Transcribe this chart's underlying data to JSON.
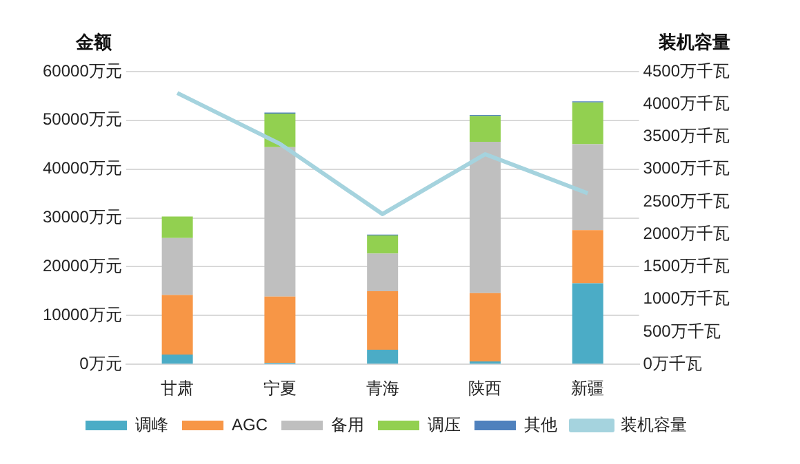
{
  "chart_data": {
    "type": "bar",
    "stacked": true,
    "ylabel": "金额",
    "y2label": "装机容量",
    "categories": [
      "甘肃",
      "宁夏",
      "青海",
      "陕西",
      "新疆"
    ],
    "series": [
      {
        "name": "调峰",
        "color": "#4bacc6",
        "values": [
          2000,
          300,
          3000,
          600,
          16600
        ]
      },
      {
        "name": "AGC",
        "color": "#f79646",
        "values": [
          12200,
          13600,
          12000,
          14000,
          10900
        ]
      },
      {
        "name": "备用",
        "color": "#bfbfbf",
        "values": [
          11700,
          30600,
          7700,
          31000,
          17600
        ]
      },
      {
        "name": "调压",
        "color": "#92d050",
        "values": [
          4400,
          6900,
          3700,
          5300,
          8600
        ]
      },
      {
        "name": "其他",
        "color": "#4f81bd",
        "values": [
          null,
          200,
          200,
          200,
          200
        ]
      },
      {
        "name": "装机容量",
        "type": "line",
        "axis": "y2",
        "color": "#a5d3de",
        "marker": "none",
        "values": [
          4170,
          3390,
          2310,
          3230,
          2630
        ]
      }
    ],
    "ylim": [
      0,
      60000
    ],
    "yticks": [
      {
        "value": 0,
        "label": "0万元"
      },
      {
        "value": 10000,
        "label": "10000万元"
      },
      {
        "value": 20000,
        "label": "20000万元"
      },
      {
        "value": 30000,
        "label": "30000万元"
      },
      {
        "value": 40000,
        "label": "40000万元"
      },
      {
        "value": 50000,
        "label": "50000万元"
      },
      {
        "value": 60000,
        "label": "60000万元"
      }
    ],
    "y2lim": [
      0,
      4500
    ],
    "y2ticks": [
      {
        "value": 0,
        "label": "0万千瓦"
      },
      {
        "value": 500,
        "label": "500万千瓦"
      },
      {
        "value": 1000,
        "label": "1000万千瓦"
      },
      {
        "value": 1500,
        "label": "1500万千瓦"
      },
      {
        "value": 2000,
        "label": "2000万千瓦"
      },
      {
        "value": 2500,
        "label": "2500万千瓦"
      },
      {
        "value": 3000,
        "label": "3000万千瓦"
      },
      {
        "value": 3500,
        "label": "3500万千瓦"
      },
      {
        "value": 4000,
        "label": "4000万千瓦"
      },
      {
        "value": 4500,
        "label": "4500万千瓦"
      }
    ],
    "grid": "y",
    "legend": "bottom"
  }
}
